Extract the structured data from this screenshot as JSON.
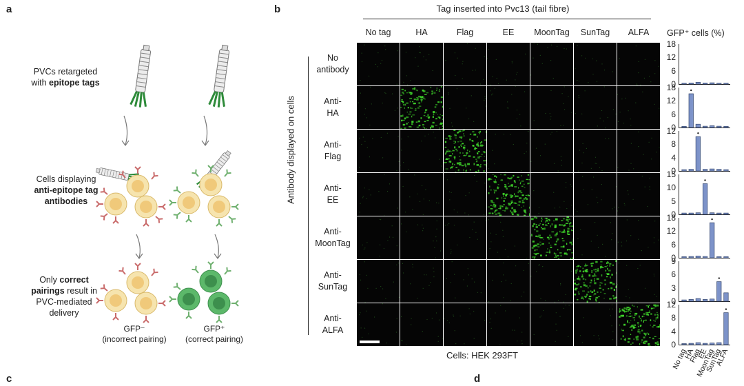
{
  "panels": {
    "a": "a",
    "b": "b",
    "c": "c",
    "d": "d"
  },
  "schematic": {
    "step1_line1": "PVCs retargeted",
    "step1_line2_plain": "with ",
    "step1_line2_bold": "epitope tags",
    "step2_line1": "Cells displaying",
    "step2_line2_bold": "anti-epitope tag",
    "step2_line3_bold": "antibodies",
    "step3_line1_plain": "Only ",
    "step3_line1_bold": "correct",
    "step3_line2_bold": "pairings",
    "step3_line2_plain": " result in",
    "step3_line3": "PVC-mediated",
    "step3_line4": "delivery",
    "gfp_neg": "GFP⁻",
    "gfp_neg_sub": "(incorrect pairing)",
    "gfp_pos": "GFP⁺",
    "gfp_pos_sub": "(correct pairing)",
    "colors": {
      "cell": "#f6e4ae",
      "cell_nucleus": "#f0c97a",
      "antibody_red": "#c96b6b",
      "antibody_green": "#6fb06f",
      "gfp_cell": "#5cb86a",
      "gfp_nucleus": "#3d8f4d",
      "tag_green": "#2e8b3a"
    }
  },
  "grid": {
    "top_title": "Tag inserted into Pvc13 (tail fibre)",
    "columns": [
      "No tag",
      "HA",
      "Flag",
      "EE",
      "MoonTag",
      "SunTag",
      "ALFA"
    ],
    "y_axis_title": "Antibody displayed on cells",
    "rows": [
      {
        "line1": "No",
        "line2": "antibody"
      },
      {
        "line1": "Anti-",
        "line2": "HA"
      },
      {
        "line1": "Anti-",
        "line2": "Flag"
      },
      {
        "line1": "Anti-",
        "line2": "EE"
      },
      {
        "line1": "Anti-",
        "line2": "MoonTag"
      },
      {
        "line1": "Anti-",
        "line2": "SunTag"
      },
      {
        "line1": "Anti-",
        "line2": "ALFA"
      }
    ],
    "bottom_caption": "Cells: HEK 293FT",
    "positive_color": "#3ed12a"
  },
  "chart_data": {
    "type": "bar",
    "title": "GFP⁺ cells (%)",
    "categories": [
      "No tag",
      "HA",
      "Flag",
      "EE",
      "MoonTag",
      "SunTag",
      "ALFA"
    ],
    "bar_color": "#7d93c9",
    "subplots": [
      {
        "row": "No antibody",
        "ylim": [
          0,
          18
        ],
        "yticks": [
          "18",
          "12",
          "6",
          "0"
        ],
        "values": [
          0.4,
          0.5,
          0.8,
          0.5,
          0.6,
          0.4,
          0.4
        ],
        "star": null
      },
      {
        "row": "Anti-HA",
        "ylim": [
          0,
          18
        ],
        "yticks": [
          "18",
          "12",
          "6",
          "0"
        ],
        "values": [
          0.5,
          15.2,
          1.5,
          0.6,
          0.8,
          0.6,
          0.5
        ],
        "star": 1
      },
      {
        "row": "Anti-Flag",
        "ylim": [
          0,
          12
        ],
        "yticks": [
          "12",
          "8",
          "4",
          "0"
        ],
        "values": [
          0.4,
          0.5,
          10.3,
          0.5,
          0.6,
          0.5,
          0.4
        ],
        "star": 2
      },
      {
        "row": "Anti-EE",
        "ylim": [
          0,
          15
        ],
        "yticks": [
          "15",
          "10",
          "5",
          "0"
        ],
        "values": [
          0.5,
          0.5,
          0.6,
          11.5,
          0.6,
          0.5,
          0.5
        ],
        "star": 3
      },
      {
        "row": "Anti-MoonTag",
        "ylim": [
          0,
          18
        ],
        "yticks": [
          "18",
          "12",
          "6",
          "0"
        ],
        "values": [
          0.5,
          0.6,
          0.8,
          0.6,
          15.8,
          0.5,
          0.5
        ],
        "star": 4
      },
      {
        "row": "Anti-SunTag",
        "ylim": [
          0,
          9
        ],
        "yticks": [
          "9",
          "6",
          "3",
          "0"
        ],
        "values": [
          0.3,
          0.4,
          0.6,
          0.4,
          0.5,
          4.4,
          1.9
        ],
        "star": 5
      },
      {
        "row": "Anti-ALFA",
        "ylim": [
          0,
          12
        ],
        "yticks": [
          "12",
          "8",
          "4",
          "0"
        ],
        "values": [
          0.3,
          0.4,
          0.6,
          0.4,
          0.5,
          0.6,
          9.6
        ],
        "star": 6
      }
    ]
  }
}
